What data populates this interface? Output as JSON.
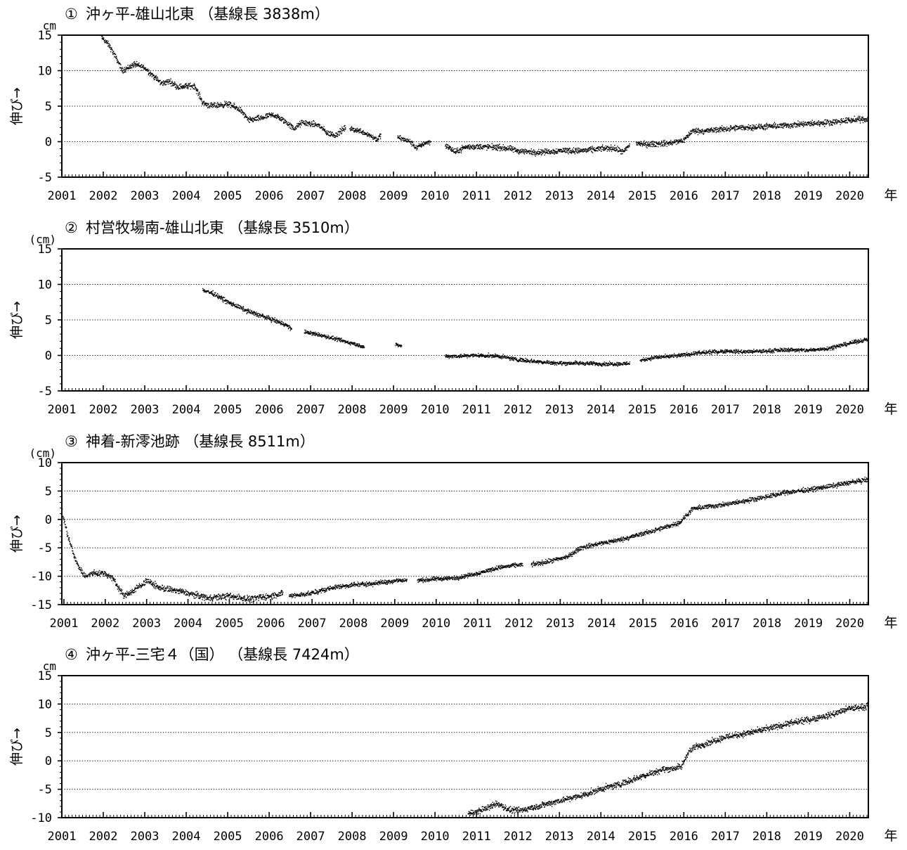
{
  "chart_data": [
    {
      "type": "scatter",
      "number": "①",
      "title": "沖ヶ平-雄山北東 （基線長 3838m）",
      "unit": "cm",
      "ylabel": "伸び→",
      "year_suffix": "年",
      "xlim": [
        2001.0,
        2020.45
      ],
      "ylim": [
        -5,
        15
      ],
      "yticks": [
        -5,
        0,
        5,
        10,
        15
      ],
      "xtick_labels": [
        "2001",
        "2002",
        "2003",
        "2004",
        "2005",
        "2006",
        "2007",
        "2008",
        "2009",
        "2010",
        "2011",
        "2012",
        "2013",
        "2014",
        "2015",
        "2016",
        "2017",
        "2018",
        "2019",
        "2020"
      ],
      "grid": true,
      "segments": [
        {
          "x": [
            2001.95,
            2002.15,
            2002.4,
            2002.45,
            2002.6,
            2002.75,
            2003.0,
            2003.4,
            2003.6,
            2003.8,
            2004.2,
            2004.4,
            2004.6,
            2005.0,
            2005.3,
            2005.5,
            2005.8,
            2006.1,
            2006.4,
            2006.6,
            2006.8,
            2007.2,
            2007.4,
            2007.6,
            2007.85
          ],
          "y": [
            14.8,
            13.5,
            10.8,
            10.0,
            10.4,
            10.9,
            10.4,
            8.2,
            8.5,
            7.7,
            7.9,
            5.5,
            5.0,
            5.3,
            4.5,
            3.0,
            3.3,
            3.8,
            2.8,
            1.8,
            2.7,
            2.3,
            1.2,
            0.9,
            2.0
          ],
          "spread": 0.45
        },
        {
          "x": [
            2007.95,
            2008.2,
            2008.4,
            2008.6,
            2008.7
          ],
          "y": [
            1.8,
            1.5,
            1.0,
            0.3,
            0.9
          ],
          "spread": 0.4
        },
        {
          "x": [
            2009.1,
            2009.4,
            2009.55,
            2009.75,
            2009.9
          ],
          "y": [
            0.6,
            0.0,
            -0.9,
            -0.2,
            0.0
          ],
          "spread": 0.4
        },
        {
          "x": [
            2010.25,
            2010.5,
            2010.7,
            2011.0,
            2011.5,
            2011.8,
            2012.0,
            2012.4,
            2012.8,
            2013.1,
            2013.4,
            2013.7,
            2014.0,
            2014.3,
            2014.55,
            2014.7
          ],
          "y": [
            -0.5,
            -1.5,
            -0.8,
            -0.7,
            -0.8,
            -1.0,
            -1.3,
            -1.5,
            -1.4,
            -1.2,
            -1.3,
            -1.2,
            -1.0,
            -0.9,
            -1.5,
            -0.4
          ],
          "spread": 0.45
        },
        {
          "x": [
            2014.85,
            2015.1,
            2015.4,
            2015.7,
            2016.0,
            2016.2,
            2016.5,
            2017.0,
            2017.5,
            2018.0,
            2018.5,
            2019.0,
            2019.5,
            2020.0,
            2020.45
          ],
          "y": [
            -0.2,
            -0.4,
            -0.3,
            -0.2,
            0.2,
            1.5,
            1.5,
            1.8,
            2.0,
            2.1,
            2.3,
            2.5,
            2.7,
            3.0,
            3.2
          ],
          "spread": 0.45
        }
      ]
    },
    {
      "type": "scatter",
      "number": "②",
      "title": "村営牧場南-雄山北東 （基線長 3510m）",
      "unit": "(cm)",
      "ylabel": "伸び→",
      "year_suffix": "年",
      "xlim": [
        2001.0,
        2020.45
      ],
      "ylim": [
        -5,
        15
      ],
      "yticks": [
        -5,
        0,
        5,
        10,
        15
      ],
      "xtick_labels": [
        "2001",
        "2002",
        "2003",
        "2004",
        "2005",
        "2006",
        "2007",
        "2008",
        "2009",
        "2010",
        "2011",
        "2012",
        "2013",
        "2014",
        "2015",
        "2016",
        "2017",
        "2018",
        "2019",
        "2020"
      ],
      "grid": true,
      "segments": [
        {
          "x": [
            2004.4,
            2004.7,
            2005.0,
            2005.5,
            2006.0,
            2006.4,
            2006.55
          ],
          "y": [
            9.2,
            8.6,
            7.5,
            6.2,
            5.2,
            4.3,
            3.7
          ],
          "spread": 0.35
        },
        {
          "x": [
            2006.85,
            2007.2,
            2007.6,
            2008.0,
            2008.3
          ],
          "y": [
            3.3,
            2.9,
            2.3,
            1.7,
            1.2
          ],
          "spread": 0.3
        },
        {
          "x": [
            2009.05,
            2009.2
          ],
          "y": [
            1.5,
            1.3
          ],
          "spread": 0.25
        },
        {
          "x": [
            2010.25,
            2010.6,
            2011.0,
            2011.5,
            2012.0,
            2012.5,
            2013.0,
            2013.5,
            2014.0,
            2014.5,
            2014.7
          ],
          "y": [
            -0.1,
            -0.1,
            0.0,
            -0.1,
            -0.6,
            -0.9,
            -1.1,
            -1.1,
            -1.2,
            -1.2,
            -1.1
          ],
          "spread": 0.3
        },
        {
          "x": [
            2014.95,
            2015.3,
            2015.8,
            2016.3,
            2017.0,
            2017.5,
            2018.0,
            2018.5,
            2019.0,
            2019.5,
            2020.0,
            2020.45
          ],
          "y": [
            -0.7,
            -0.3,
            -0.1,
            0.3,
            0.6,
            0.5,
            0.6,
            0.8,
            0.7,
            1.0,
            1.7,
            2.3
          ],
          "spread": 0.3
        }
      ]
    },
    {
      "type": "scatter",
      "number": "③",
      "title": "神着-新澪池跡 （基線長 8511m）",
      "unit": "(cm)",
      "ylabel": "伸び→",
      "year_suffix": "年",
      "xlim": [
        2000.95,
        2020.45
      ],
      "ylim": [
        -15,
        10
      ],
      "yticks": [
        -15,
        -10,
        -5,
        0,
        5,
        10
      ],
      "xtick_labels": [
        "2001",
        "2002",
        "2003",
        "2004",
        "2005",
        "2006",
        "2007",
        "2008",
        "2009",
        "2010",
        "2011",
        "2012",
        "2013",
        "2014",
        "2015",
        "2016",
        "2017",
        "2018",
        "2019",
        "2020"
      ],
      "grid": true,
      "segments": [
        {
          "x": [
            2000.95,
            2001.1,
            2001.3,
            2001.5,
            2001.7,
            2002.0,
            2002.2,
            2002.45,
            2002.7,
            2003.0,
            2003.3,
            2003.7,
            2004.0,
            2004.5,
            2005.0,
            2005.5,
            2006.0,
            2006.3
          ],
          "y": [
            1.5,
            -3.0,
            -7.5,
            -10.0,
            -9.5,
            -9.5,
            -10.5,
            -13.5,
            -12.5,
            -10.8,
            -12.0,
            -12.5,
            -13.0,
            -13.8,
            -13.5,
            -14.0,
            -13.5,
            -13.0
          ],
          "spread": 0.6
        },
        {
          "x": [
            2006.45,
            2007.0,
            2007.5,
            2008.0,
            2008.5,
            2009.0,
            2009.3
          ],
          "y": [
            -13.5,
            -13.0,
            -12.0,
            -11.5,
            -11.3,
            -10.8,
            -10.7
          ],
          "spread": 0.45
        },
        {
          "x": [
            2009.55,
            2010.0,
            2010.5,
            2011.0,
            2011.5,
            2012.0,
            2012.1
          ],
          "y": [
            -10.8,
            -10.5,
            -10.3,
            -9.5,
            -8.5,
            -8.0,
            -8.0
          ],
          "spread": 0.4
        },
        {
          "x": [
            2012.3,
            2012.8,
            2013.2,
            2013.5,
            2014.0,
            2014.5,
            2015.0,
            2015.5,
            2015.9,
            2016.2,
            2016.5,
            2017.0,
            2017.5,
            2018.0,
            2018.5,
            2019.0,
            2019.5,
            2020.0,
            2020.45
          ],
          "y": [
            -8.0,
            -7.3,
            -6.5,
            -5.0,
            -4.2,
            -3.5,
            -2.5,
            -1.5,
            -0.5,
            1.8,
            2.2,
            2.6,
            3.3,
            4.0,
            4.8,
            5.2,
            5.8,
            6.5,
            7.0
          ],
          "spread": 0.45
        }
      ]
    },
    {
      "type": "scatter",
      "number": "④",
      "title": "沖ヶ平-三宅４（国） （基線長 7424m）",
      "unit": "cm",
      "ylabel": "伸び→",
      "year_suffix": "年",
      "xlim": [
        2001.0,
        2020.45
      ],
      "ylim": [
        -10,
        15
      ],
      "yticks": [
        -10,
        -5,
        0,
        5,
        10,
        15
      ],
      "xtick_labels": [
        "2001",
        "2002",
        "2003",
        "2004",
        "2005",
        "2006",
        "2007",
        "2008",
        "2009",
        "2010",
        "2011",
        "2012",
        "2013",
        "2014",
        "2015",
        "2016",
        "2017",
        "2018",
        "2019",
        "2020"
      ],
      "grid": true,
      "segments": [
        {
          "x": [
            2010.8,
            2011.0,
            2011.3,
            2011.5,
            2011.8,
            2012.0,
            2012.5,
            2013.0,
            2013.5,
            2014.0,
            2014.5,
            2015.0,
            2015.5,
            2015.8,
            2015.95,
            2016.1,
            2016.3,
            2016.6,
            2017.0,
            2017.5,
            2018.0,
            2018.5,
            2019.0,
            2019.5,
            2020.0,
            2020.45
          ],
          "y": [
            -9.2,
            -9.0,
            -8.2,
            -7.5,
            -8.7,
            -8.8,
            -8.0,
            -7.0,
            -6.2,
            -5.0,
            -4.0,
            -2.7,
            -1.5,
            -1.3,
            -1.0,
            1.5,
            2.5,
            3.2,
            4.2,
            4.8,
            5.6,
            6.5,
            7.2,
            8.0,
            9.2,
            9.6
          ],
          "spread": 0.6
        }
      ]
    }
  ]
}
